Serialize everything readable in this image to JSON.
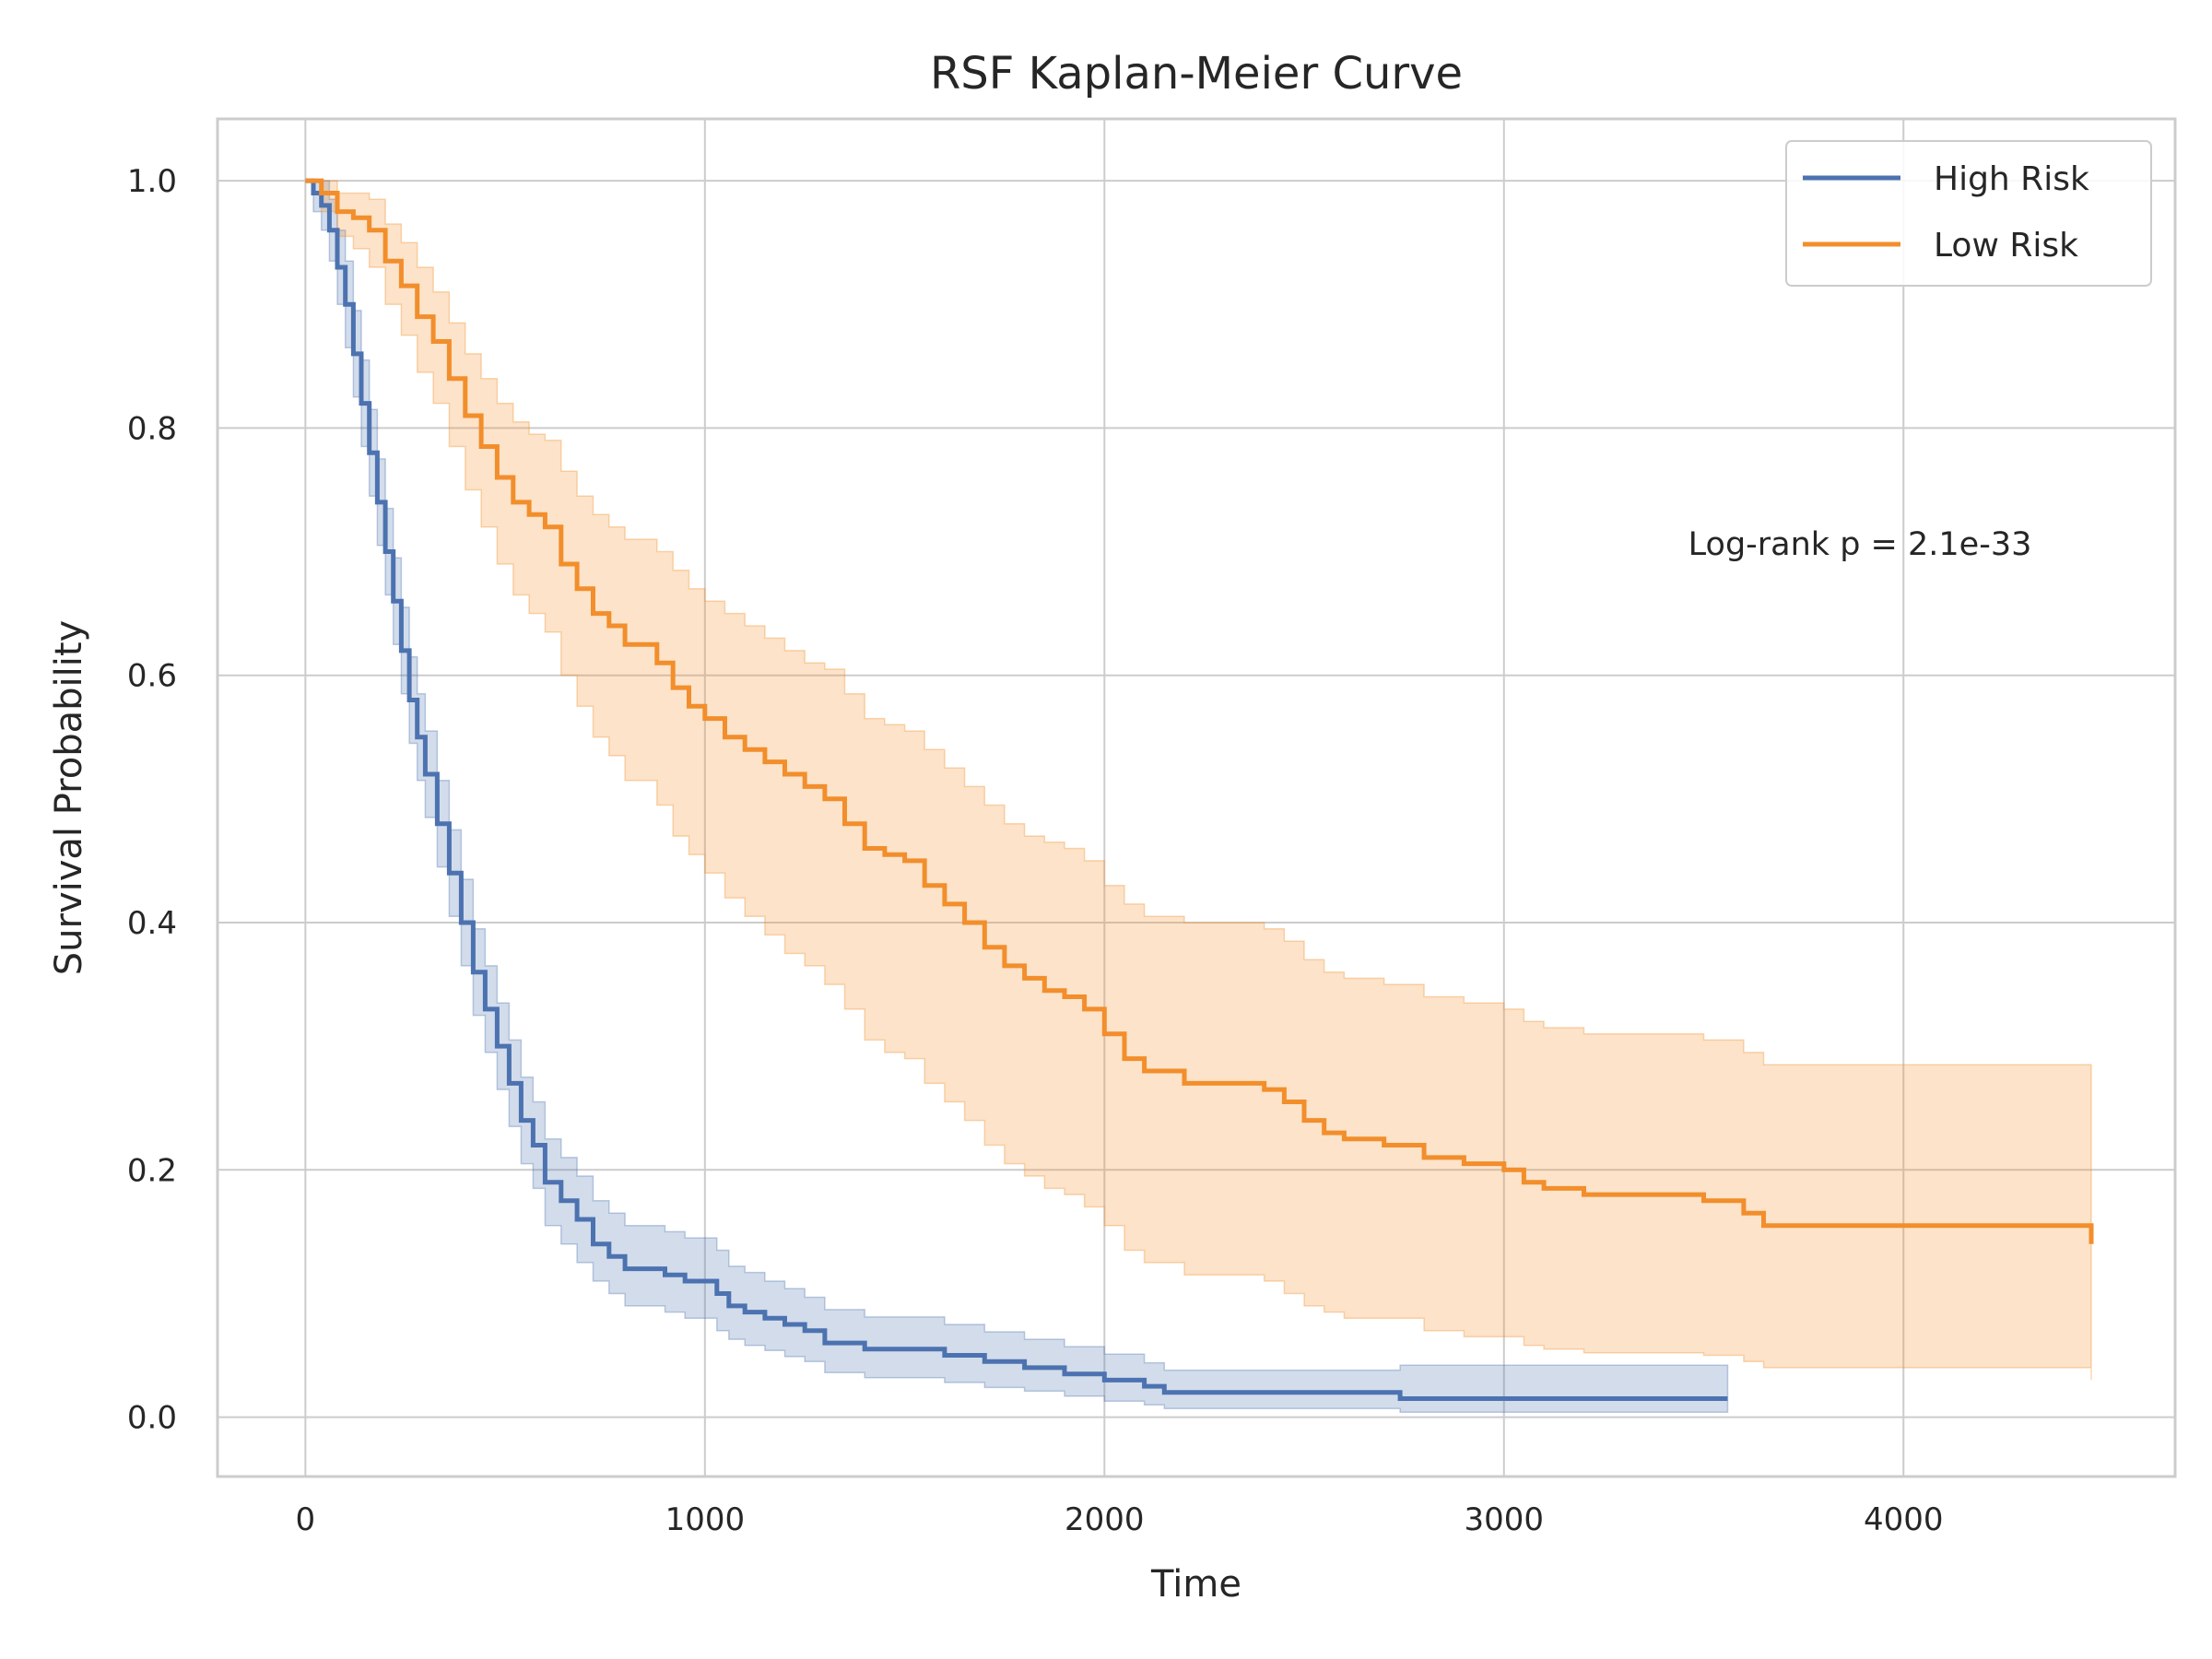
{
  "chart_data": {
    "type": "line",
    "step": "post",
    "title": "RSF Kaplan-Meier Curve",
    "xlabel": "Time",
    "ylabel": "Survival Probability",
    "xlim": [
      -220,
      4680
    ],
    "ylim": [
      -0.048,
      1.05
    ],
    "xticks": [
      0,
      1000,
      2000,
      3000,
      4000
    ],
    "yticks": [
      0.0,
      0.2,
      0.4,
      0.6,
      0.8,
      1.0
    ],
    "ytick_labels": [
      "0.0",
      "0.2",
      "0.4",
      "0.6",
      "0.8",
      "1.0"
    ],
    "grid": true,
    "legend_position": "top-right",
    "annotation": "Log-rank p = 2.1e-33",
    "series": [
      {
        "name": "High Risk",
        "color": "#4c72b0",
        "x": [
          0,
          20,
          40,
          60,
          80,
          100,
          120,
          140,
          160,
          180,
          200,
          220,
          240,
          260,
          280,
          300,
          330,
          360,
          390,
          420,
          450,
          480,
          510,
          540,
          570,
          600,
          640,
          680,
          720,
          760,
          800,
          850,
          900,
          950,
          1000,
          1030,
          1060,
          1100,
          1150,
          1200,
          1250,
          1300,
          1350,
          1400,
          1500,
          1600,
          1700,
          1800,
          1900,
          2000,
          2100,
          2150,
          2300,
          2500,
          2740,
          3000,
          3200,
          3560
        ],
        "y": [
          1.0,
          0.99,
          0.98,
          0.96,
          0.93,
          0.9,
          0.86,
          0.82,
          0.78,
          0.74,
          0.7,
          0.66,
          0.62,
          0.58,
          0.55,
          0.52,
          0.48,
          0.44,
          0.4,
          0.36,
          0.33,
          0.3,
          0.27,
          0.24,
          0.22,
          0.19,
          0.175,
          0.16,
          0.14,
          0.13,
          0.12,
          0.12,
          0.115,
          0.11,
          0.11,
          0.1,
          0.09,
          0.085,
          0.08,
          0.075,
          0.07,
          0.06,
          0.06,
          0.055,
          0.055,
          0.05,
          0.045,
          0.04,
          0.035,
          0.03,
          0.025,
          0.02,
          0.02,
          0.02,
          0.015,
          0.015,
          0.015,
          0.015
        ],
        "ci_lower": [
          1.0,
          0.975,
          0.96,
          0.935,
          0.9,
          0.865,
          0.825,
          0.785,
          0.745,
          0.705,
          0.665,
          0.625,
          0.585,
          0.545,
          0.515,
          0.485,
          0.445,
          0.405,
          0.365,
          0.325,
          0.295,
          0.265,
          0.235,
          0.205,
          0.185,
          0.155,
          0.14,
          0.125,
          0.11,
          0.1,
          0.09,
          0.09,
          0.085,
          0.08,
          0.08,
          0.07,
          0.063,
          0.058,
          0.054,
          0.049,
          0.045,
          0.036,
          0.036,
          0.032,
          0.032,
          0.028,
          0.024,
          0.021,
          0.017,
          0.013,
          0.01,
          0.007,
          0.007,
          0.007,
          0.004,
          0.004,
          0.004,
          0.004
        ],
        "ci_upper": [
          1.0,
          1.0,
          1.0,
          0.985,
          0.96,
          0.935,
          0.895,
          0.855,
          0.815,
          0.775,
          0.735,
          0.695,
          0.655,
          0.615,
          0.585,
          0.555,
          0.515,
          0.475,
          0.435,
          0.395,
          0.365,
          0.335,
          0.305,
          0.275,
          0.255,
          0.225,
          0.21,
          0.195,
          0.175,
          0.165,
          0.155,
          0.155,
          0.15,
          0.145,
          0.145,
          0.135,
          0.122,
          0.117,
          0.11,
          0.104,
          0.097,
          0.087,
          0.087,
          0.081,
          0.081,
          0.075,
          0.069,
          0.063,
          0.057,
          0.051,
          0.044,
          0.038,
          0.038,
          0.038,
          0.042,
          0.042,
          0.042,
          0.042
        ]
      },
      {
        "name": "Low Risk",
        "color": "#f28e2b",
        "x": [
          0,
          40,
          80,
          120,
          160,
          200,
          240,
          280,
          320,
          360,
          400,
          440,
          480,
          520,
          560,
          600,
          640,
          680,
          720,
          760,
          800,
          880,
          920,
          960,
          1000,
          1050,
          1100,
          1150,
          1200,
          1250,
          1300,
          1350,
          1400,
          1450,
          1500,
          1550,
          1600,
          1650,
          1700,
          1750,
          1800,
          1850,
          1900,
          1950,
          2000,
          2050,
          2100,
          2200,
          2300,
          2400,
          2450,
          2500,
          2550,
          2600,
          2700,
          2800,
          2900,
          3000,
          3050,
          3100,
          3200,
          3300,
          3400,
          3500,
          3600,
          3650,
          4470
        ],
        "y": [
          1.0,
          0.99,
          0.975,
          0.97,
          0.96,
          0.935,
          0.915,
          0.89,
          0.87,
          0.84,
          0.81,
          0.785,
          0.76,
          0.74,
          0.73,
          0.72,
          0.69,
          0.67,
          0.65,
          0.64,
          0.625,
          0.61,
          0.59,
          0.575,
          0.565,
          0.55,
          0.54,
          0.53,
          0.52,
          0.51,
          0.5,
          0.48,
          0.46,
          0.455,
          0.45,
          0.43,
          0.415,
          0.4,
          0.38,
          0.365,
          0.355,
          0.345,
          0.34,
          0.33,
          0.31,
          0.29,
          0.28,
          0.27,
          0.27,
          0.265,
          0.255,
          0.24,
          0.23,
          0.225,
          0.22,
          0.21,
          0.205,
          0.2,
          0.19,
          0.185,
          0.18,
          0.18,
          0.18,
          0.175,
          0.165,
          0.155,
          0.14
        ],
        "ci_lower": [
          1.0,
          0.975,
          0.955,
          0.945,
          0.93,
          0.9,
          0.875,
          0.845,
          0.82,
          0.785,
          0.75,
          0.72,
          0.69,
          0.665,
          0.65,
          0.635,
          0.6,
          0.575,
          0.55,
          0.535,
          0.515,
          0.495,
          0.47,
          0.455,
          0.44,
          0.42,
          0.405,
          0.39,
          0.375,
          0.365,
          0.35,
          0.33,
          0.305,
          0.295,
          0.29,
          0.27,
          0.255,
          0.24,
          0.22,
          0.205,
          0.195,
          0.185,
          0.18,
          0.17,
          0.155,
          0.135,
          0.125,
          0.115,
          0.115,
          0.11,
          0.1,
          0.09,
          0.085,
          0.08,
          0.08,
          0.07,
          0.065,
          0.065,
          0.058,
          0.055,
          0.052,
          0.052,
          0.052,
          0.05,
          0.045,
          0.04,
          0.03
        ],
        "ci_upper": [
          1.0,
          1.0,
          0.99,
          0.99,
          0.985,
          0.965,
          0.95,
          0.93,
          0.91,
          0.885,
          0.86,
          0.84,
          0.82,
          0.805,
          0.795,
          0.79,
          0.765,
          0.745,
          0.73,
          0.72,
          0.71,
          0.7,
          0.685,
          0.67,
          0.66,
          0.65,
          0.64,
          0.63,
          0.62,
          0.61,
          0.605,
          0.585,
          0.565,
          0.56,
          0.555,
          0.54,
          0.525,
          0.51,
          0.495,
          0.48,
          0.47,
          0.465,
          0.46,
          0.45,
          0.43,
          0.415,
          0.405,
          0.4,
          0.4,
          0.395,
          0.385,
          0.37,
          0.36,
          0.355,
          0.35,
          0.34,
          0.335,
          0.33,
          0.32,
          0.315,
          0.31,
          0.31,
          0.31,
          0.305,
          0.295,
          0.285,
          0.27
        ]
      }
    ]
  }
}
